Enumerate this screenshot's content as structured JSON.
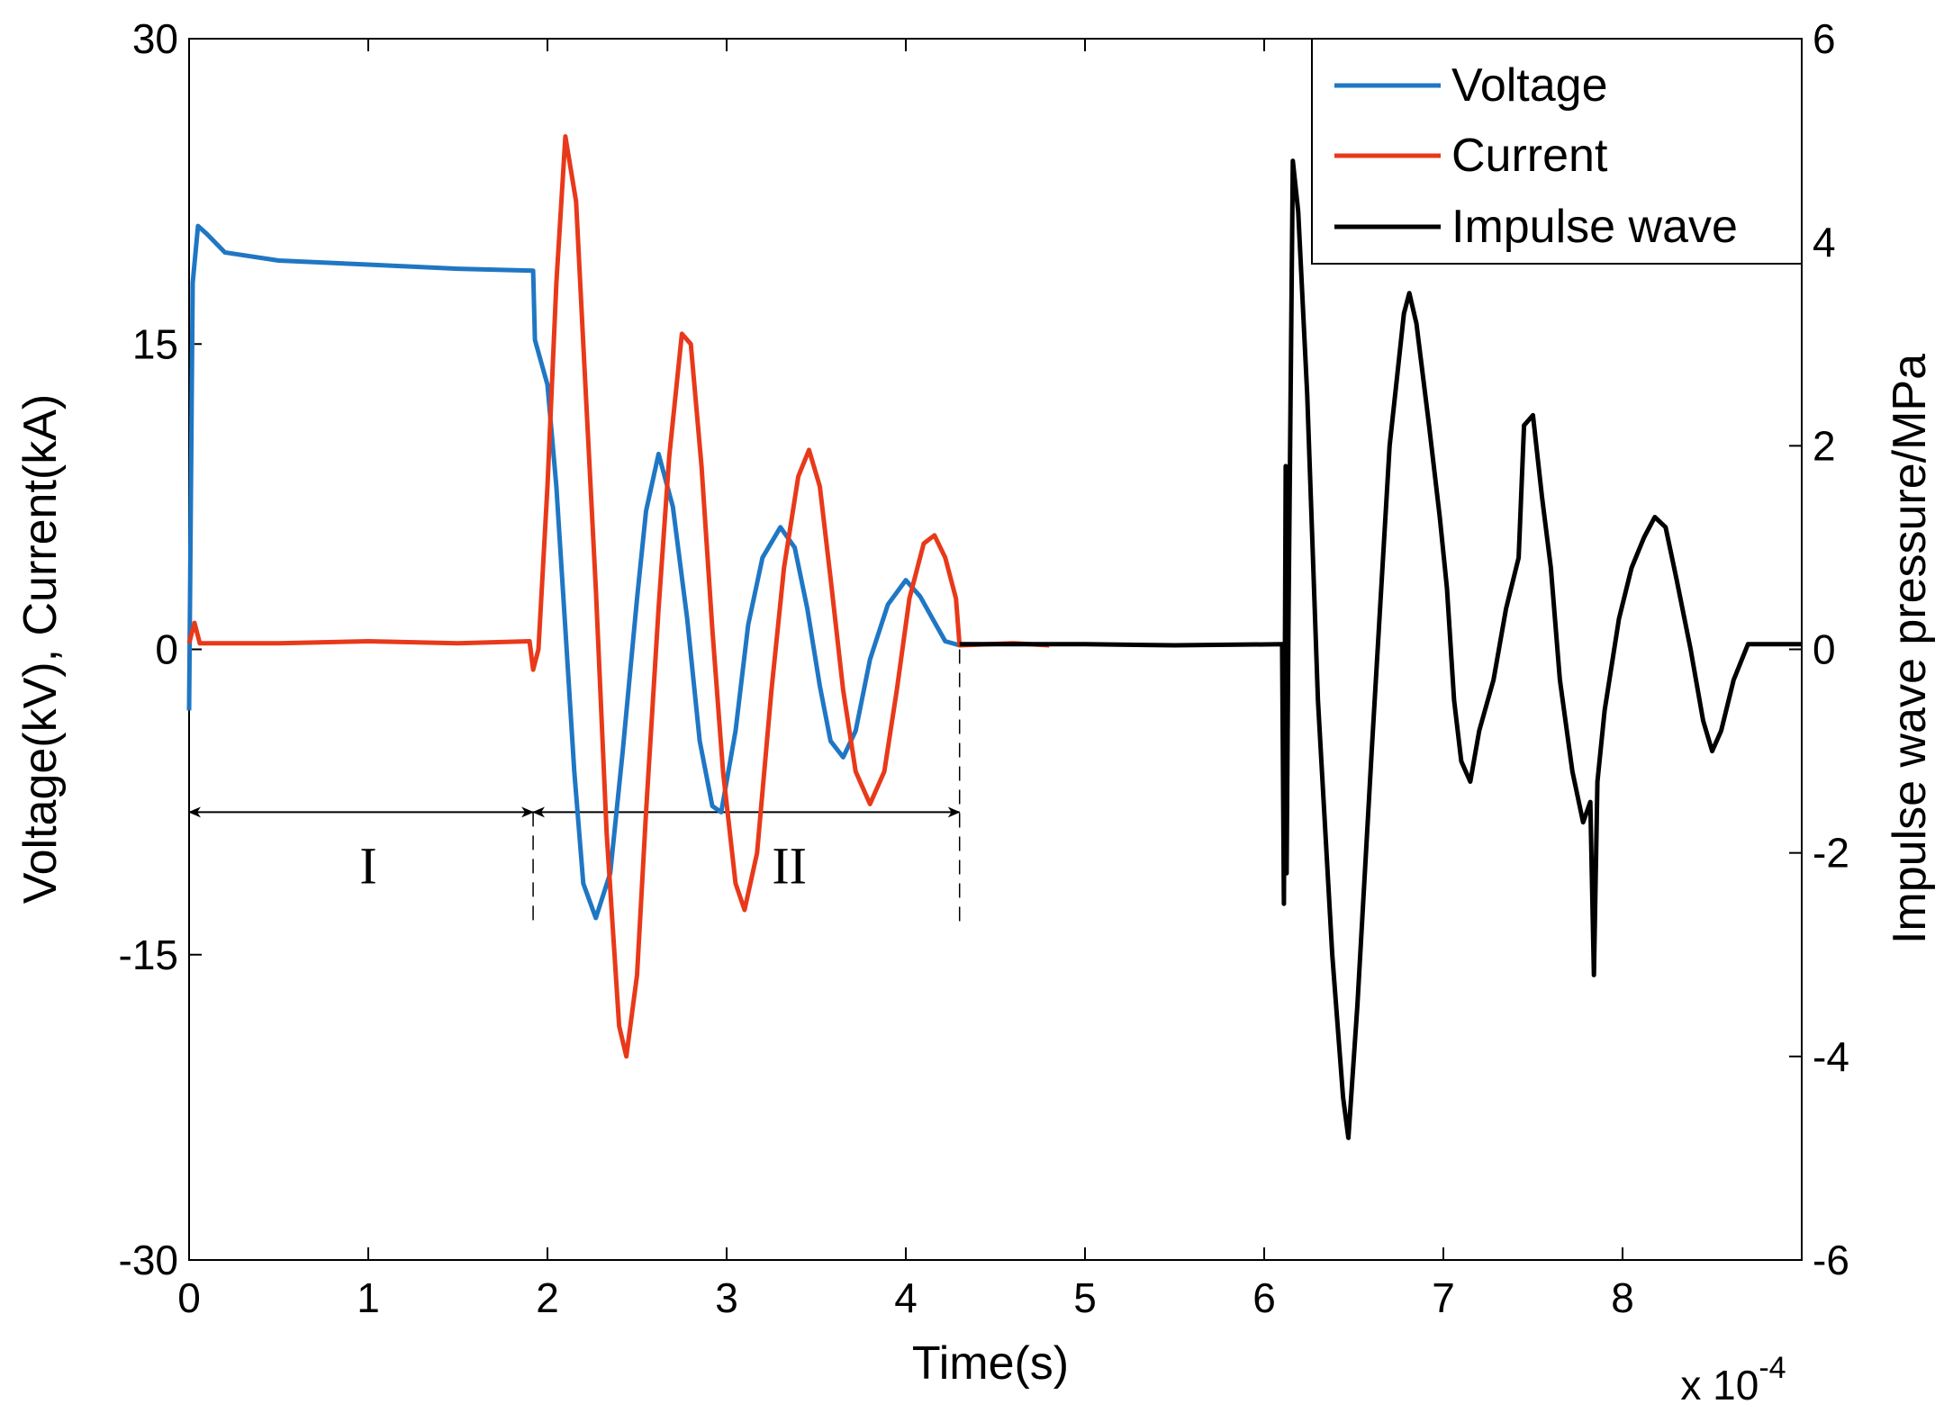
{
  "chart_data": {
    "type": "line",
    "x_label": "Time(s)",
    "x_multiplier": "x 10",
    "x_multiplier_exponent": "-4",
    "y_left_label": "Voltage(kV), Current(kA)",
    "y_right_label": "Impulse wave pressure/MPa",
    "x_range": [
      0,
      9
    ],
    "y_left_range": [
      -30,
      30
    ],
    "y_right_range": [
      -6,
      6
    ],
    "x_ticks": [
      "0",
      "1",
      "2",
      "3",
      "4",
      "5",
      "6",
      "7",
      "8"
    ],
    "x_tick_values": [
      0,
      1,
      2,
      3,
      4,
      5,
      6,
      7,
      8
    ],
    "y_left_ticks": [
      "30",
      "15",
      "0",
      "-15",
      "-30"
    ],
    "y_left_tick_values": [
      30,
      15,
      0,
      -15,
      -30
    ],
    "y_right_ticks": [
      "6",
      "4",
      "2",
      "0",
      "-2",
      "-4",
      "-6"
    ],
    "y_right_tick_values": [
      6,
      4,
      2,
      0,
      -2,
      -4,
      -6
    ],
    "grid": false,
    "legend_position": "top-right",
    "series": [
      {
        "name": "Voltage",
        "color": "#1f77c4",
        "axis": "left",
        "points": [
          [
            0,
            -3
          ],
          [
            0.02,
            18
          ],
          [
            0.05,
            20.8
          ],
          [
            0.1,
            20.4
          ],
          [
            0.2,
            19.5
          ],
          [
            0.5,
            19.1
          ],
          [
            1.0,
            18.9
          ],
          [
            1.5,
            18.7
          ],
          [
            1.92,
            18.6
          ],
          [
            1.93,
            15.2
          ],
          [
            2.0,
            13.0
          ],
          [
            2.05,
            8
          ],
          [
            2.1,
            1
          ],
          [
            2.15,
            -6
          ],
          [
            2.2,
            -11.5
          ],
          [
            2.27,
            -13.2
          ],
          [
            2.35,
            -11
          ],
          [
            2.42,
            -5
          ],
          [
            2.5,
            2.5
          ],
          [
            2.55,
            6.8
          ],
          [
            2.62,
            9.6
          ],
          [
            2.7,
            7
          ],
          [
            2.78,
            1.5
          ],
          [
            2.85,
            -4.5
          ],
          [
            2.92,
            -7.7
          ],
          [
            2.97,
            -8
          ],
          [
            3.05,
            -4
          ],
          [
            3.12,
            1.2
          ],
          [
            3.2,
            4.5
          ],
          [
            3.3,
            6
          ],
          [
            3.38,
            5
          ],
          [
            3.45,
            2
          ],
          [
            3.52,
            -1.8
          ],
          [
            3.58,
            -4.5
          ],
          [
            3.65,
            -5.3
          ],
          [
            3.72,
            -4
          ],
          [
            3.8,
            -0.5
          ],
          [
            3.9,
            2.2
          ],
          [
            4.0,
            3.4
          ],
          [
            4.08,
            2.6
          ],
          [
            4.15,
            1.5
          ],
          [
            4.22,
            0.4
          ],
          [
            4.3,
            0.2
          ]
        ]
      },
      {
        "name": "Current",
        "color": "#e8391a",
        "axis": "left",
        "points": [
          [
            0,
            0.3
          ],
          [
            0.03,
            1.3
          ],
          [
            0.06,
            0.3
          ],
          [
            0.5,
            0.3
          ],
          [
            1.0,
            0.4
          ],
          [
            1.5,
            0.3
          ],
          [
            1.9,
            0.4
          ],
          [
            1.92,
            -1
          ],
          [
            1.95,
            0
          ],
          [
            2.0,
            8
          ],
          [
            2.05,
            18
          ],
          [
            2.1,
            25.2
          ],
          [
            2.16,
            22
          ],
          [
            2.2,
            15
          ],
          [
            2.27,
            3
          ],
          [
            2.33,
            -9
          ],
          [
            2.4,
            -18.5
          ],
          [
            2.44,
            -20
          ],
          [
            2.5,
            -16
          ],
          [
            2.55,
            -8
          ],
          [
            2.62,
            2
          ],
          [
            2.68,
            9.5
          ],
          [
            2.75,
            15.5
          ],
          [
            2.8,
            15
          ],
          [
            2.86,
            9
          ],
          [
            2.92,
            1
          ],
          [
            2.98,
            -6
          ],
          [
            3.05,
            -11.5
          ],
          [
            3.1,
            -12.8
          ],
          [
            3.17,
            -10
          ],
          [
            3.25,
            -2
          ],
          [
            3.32,
            4
          ],
          [
            3.4,
            8.5
          ],
          [
            3.46,
            9.8
          ],
          [
            3.52,
            8
          ],
          [
            3.58,
            3.5
          ],
          [
            3.65,
            -2
          ],
          [
            3.72,
            -6
          ],
          [
            3.8,
            -7.6
          ],
          [
            3.88,
            -6
          ],
          [
            3.95,
            -2
          ],
          [
            4.02,
            2.5
          ],
          [
            4.1,
            5.2
          ],
          [
            4.16,
            5.6
          ],
          [
            4.22,
            4.5
          ],
          [
            4.28,
            2.5
          ],
          [
            4.3,
            0.2
          ],
          [
            4.6,
            0.3
          ],
          [
            4.8,
            0.2
          ]
        ]
      },
      {
        "name": "Impulse wave",
        "color": "#000000",
        "axis": "right",
        "points": [
          [
            4.3,
            0.05
          ],
          [
            5.0,
            0.05
          ],
          [
            5.5,
            0.04
          ],
          [
            6.1,
            0.05
          ],
          [
            6.11,
            -2.5
          ],
          [
            6.12,
            1.8
          ],
          [
            6.125,
            -2.2
          ],
          [
            6.135,
            0.2
          ],
          [
            6.16,
            4.8
          ],
          [
            6.19,
            4.3
          ],
          [
            6.24,
            2.5
          ],
          [
            6.3,
            -0.5
          ],
          [
            6.38,
            -3
          ],
          [
            6.44,
            -4.4
          ],
          [
            6.47,
            -4.8
          ],
          [
            6.52,
            -3.5
          ],
          [
            6.6,
            -1
          ],
          [
            6.7,
            2
          ],
          [
            6.78,
            3.3
          ],
          [
            6.81,
            3.5
          ],
          [
            6.85,
            3.2
          ],
          [
            6.92,
            2.2
          ],
          [
            6.98,
            1.3
          ],
          [
            7.02,
            0.6
          ],
          [
            7.06,
            -0.5
          ],
          [
            7.1,
            -1.1
          ],
          [
            7.15,
            -1.3
          ],
          [
            7.2,
            -0.8
          ],
          [
            7.28,
            -0.3
          ],
          [
            7.35,
            0.4
          ],
          [
            7.42,
            0.9
          ],
          [
            7.45,
            2.2
          ],
          [
            7.5,
            2.3
          ],
          [
            7.55,
            1.5
          ],
          [
            7.6,
            0.8
          ],
          [
            7.65,
            -0.3
          ],
          [
            7.72,
            -1.2
          ],
          [
            7.78,
            -1.7
          ],
          [
            7.82,
            -1.5
          ],
          [
            7.84,
            -3.2
          ],
          [
            7.86,
            -1.3
          ],
          [
            7.9,
            -0.6
          ],
          [
            7.98,
            0.3
          ],
          [
            8.05,
            0.8
          ],
          [
            8.12,
            1.1
          ],
          [
            8.18,
            1.3
          ],
          [
            8.24,
            1.2
          ],
          [
            8.3,
            0.7
          ],
          [
            8.38,
            0
          ],
          [
            8.45,
            -0.7
          ],
          [
            8.5,
            -1
          ],
          [
            8.55,
            -0.8
          ],
          [
            8.62,
            -0.3
          ],
          [
            8.7,
            0.05
          ],
          [
            8.8,
            0.05
          ],
          [
            9.0,
            0.05
          ]
        ]
      }
    ],
    "annotations": [
      {
        "text": "I",
        "x": 1.0,
        "y": -11.5
      },
      {
        "text": "II",
        "x": 3.35,
        "y": -11.5
      }
    ],
    "region_arrows": [
      {
        "from": 0,
        "to": 1.92,
        "y": -8
      },
      {
        "from": 1.92,
        "to": 4.3,
        "y": -8
      }
    ],
    "dashed_boundaries": [
      {
        "x": 1.92,
        "y_from": -8,
        "y_to": -13.5
      },
      {
        "x": 4.3,
        "y_from": 0,
        "y_to": -13.5
      }
    ]
  }
}
